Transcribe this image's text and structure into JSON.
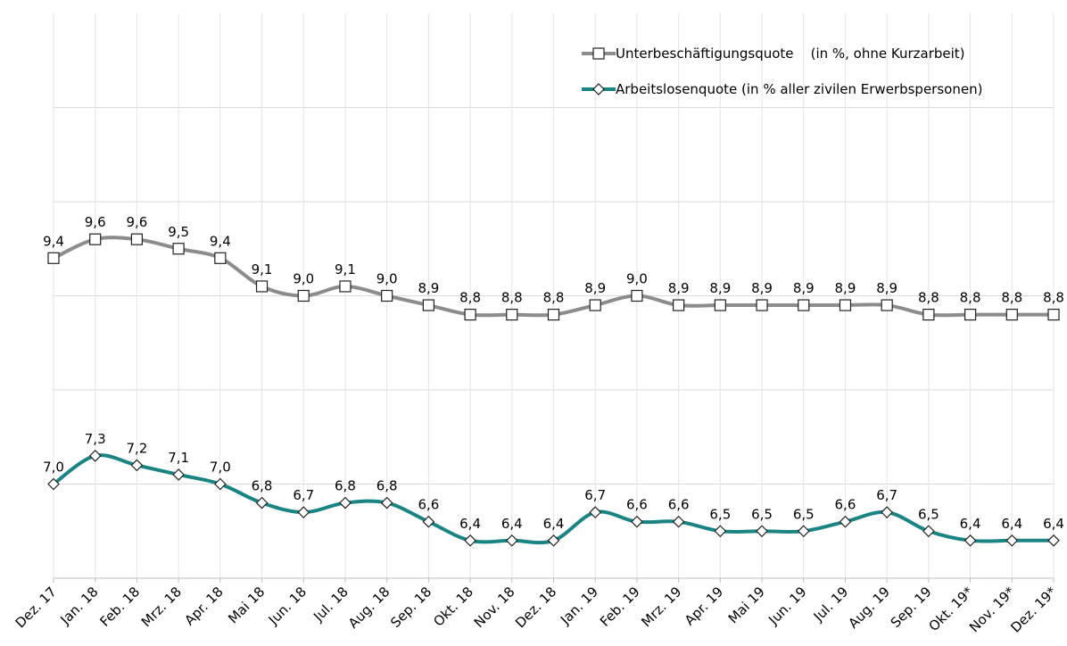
{
  "chart_data": {
    "type": "line",
    "categories": [
      "Dez. 17",
      "Jan. 18",
      "Feb. 18",
      "Mrz. 18",
      "Apr. 18",
      "Mai 18",
      "Jun. 18",
      "Jul. 18",
      "Aug. 18",
      "Sep. 18",
      "Okt. 18",
      "Nov. 18",
      "Dez. 18",
      "Jan. 19",
      "Feb. 19",
      "Mrz. 19",
      "Apr. 19",
      "Mai 19",
      "Jun. 19",
      "Jul. 19",
      "Aug. 19",
      "Sep. 19",
      "Okt. 19*",
      "Nov. 19*",
      "Dez. 19*"
    ],
    "series": [
      {
        "name": "Unterbeschäftigungsquote    (in %, ohne Kurzarbeit)",
        "color": "#8c8c8c",
        "marker": "square",
        "values": [
          9.4,
          9.6,
          9.6,
          9.5,
          9.4,
          9.1,
          9.0,
          9.1,
          9.0,
          8.9,
          8.8,
          8.8,
          8.8,
          8.9,
          9.0,
          8.9,
          8.9,
          8.9,
          8.9,
          8.9,
          8.9,
          8.8,
          8.8,
          8.8,
          8.8
        ],
        "value_labels": [
          "9,4",
          "9,6",
          "9,6",
          "9,5",
          "9,4",
          "9,1",
          "9,0",
          "9,1",
          "9,0",
          "8,9",
          "8,8",
          "8,8",
          "8,8",
          "8,9",
          "9,0",
          "8,9",
          "8,9",
          "8,9",
          "8,9",
          "8,9",
          "8,9",
          "8,8",
          "8,8",
          "8,8",
          "8,8"
        ]
      },
      {
        "name": "Arbeitslosenquote (in % aller zivilen Erwerbspersonen)",
        "color": "#1a8482",
        "marker": "diamond",
        "values": [
          7.0,
          7.3,
          7.2,
          7.1,
          7.0,
          6.8,
          6.7,
          6.8,
          6.8,
          6.6,
          6.4,
          6.4,
          6.4,
          6.7,
          6.6,
          6.6,
          6.5,
          6.5,
          6.5,
          6.6,
          6.7,
          6.5,
          6.4,
          6.4,
          6.4
        ],
        "value_labels": [
          "7,0",
          "7,3",
          "7,2",
          "7,1",
          "7,0",
          "6,8",
          "6,7",
          "6,8",
          "6,8",
          "6,6",
          "6,4",
          "6,4",
          "6,4",
          "6,7",
          "6,6",
          "6,6",
          "6,5",
          "6,5",
          "6,5",
          "6,6",
          "6,7",
          "6,5",
          "6,4",
          "6,4",
          "6,4"
        ]
      }
    ],
    "ylim": [
      6,
      12
    ],
    "yticks": [
      7,
      8,
      9,
      10,
      11
    ],
    "grid": true,
    "legend": "top-right"
  }
}
